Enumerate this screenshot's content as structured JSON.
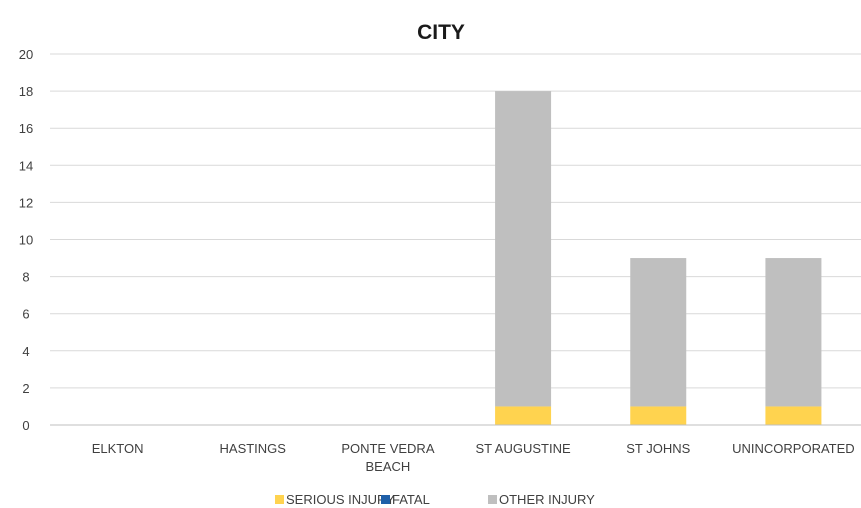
{
  "chart_data": {
    "type": "bar",
    "stacked": true,
    "title": "CITY",
    "categories": [
      "ELKTON",
      "HASTINGS",
      "PONTE VEDRA BEACH",
      "ST AUGUSTINE",
      "ST JOHNS",
      "UNINCORPORATED"
    ],
    "category_lines": [
      [
        "ELKTON"
      ],
      [
        "HASTINGS"
      ],
      [
        "PONTE VEDRA",
        "BEACH"
      ],
      [
        "ST AUGUSTINE"
      ],
      [
        "ST JOHNS"
      ],
      [
        "UNINCORPORATED"
      ]
    ],
    "series": [
      {
        "name": "SERIOUS INJURY",
        "color": "#FFD34F",
        "values": [
          0,
          0,
          0,
          1,
          1,
          1
        ]
      },
      {
        "name": "FATAL",
        "color": "#1F5FA8",
        "values": [
          0,
          0,
          0,
          0,
          0,
          0
        ]
      },
      {
        "name": "OTHER INJURY",
        "color": "#BFBFBF",
        "values": [
          0,
          0,
          0,
          17,
          8,
          8
        ]
      }
    ],
    "ylim": [
      0,
      20
    ],
    "yticks": [
      0,
      2,
      4,
      6,
      8,
      10,
      12,
      14,
      16,
      18,
      20
    ],
    "grid": true,
    "legend_position": "bottom"
  }
}
